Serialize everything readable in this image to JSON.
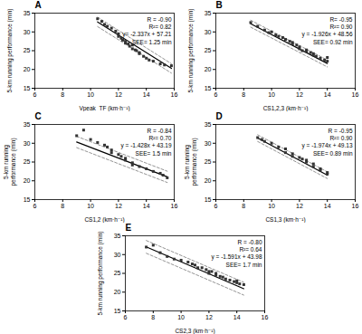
{
  "chart_data": [
    {
      "type": "scatter",
      "title": "A",
      "xlabel": "Vpeak_TF (km·h⁻¹)",
      "ylabel": "5-km running performance (min)",
      "xlim": [
        6,
        16
      ],
      "ylim": [
        15,
        35
      ],
      "xticks": [
        6,
        8,
        10,
        12,
        14,
        16
      ],
      "yticks": [
        15,
        20,
        25,
        30,
        35
      ],
      "grid": false,
      "annotations": [
        "R = -0.90",
        "R²= 0.82",
        "y= -2.337x + 57.21",
        "SEE= 1.25 min"
      ],
      "color": "#333333",
      "marker": "square",
      "x": [
        10.5,
        10.8,
        11.0,
        11.2,
        11.5,
        11.8,
        12.0,
        12.0,
        12.2,
        12.3,
        12.5,
        12.5,
        12.7,
        12.8,
        13.0,
        13.0,
        13.2,
        13.3,
        13.5,
        13.5,
        13.8,
        14.0,
        14.2,
        14.5,
        15.0,
        15.3,
        15.8
      ],
      "values": [
        33.5,
        32.8,
        32.0,
        31.5,
        31.0,
        30.2,
        29.5,
        28.8,
        28.3,
        27.8,
        27.5,
        27.0,
        26.8,
        26.2,
        26.5,
        25.5,
        25.2,
        25.0,
        24.5,
        24.2,
        23.5,
        23.0,
        22.5,
        22.2,
        21.5,
        21.2,
        21.0
      ],
      "series": [
        {
          "type": "line",
          "color": "#000000",
          "line_style": "solid",
          "x": [
            10.5,
            15.8
          ],
          "values": [
            32.6715,
            20.2854
          ]
        },
        {
          "type": "line",
          "color": "#888888",
          "line_style": "dashed",
          "x": [
            10.5,
            15.8
          ],
          "values": [
            33.9215,
            21.5354
          ]
        },
        {
          "type": "line",
          "color": "#888888",
          "line_style": "dashed",
          "x": [
            10.5,
            15.8
          ],
          "values": [
            31.4215,
            19.0354
          ]
        }
      ]
    },
    {
      "type": "scatter",
      "title": "B",
      "xlabel": "CS1,2,3 (km·h⁻¹)",
      "ylabel": "5-km running performance (min)",
      "xlim": [
        6,
        16
      ],
      "ylim": [
        15,
        35
      ],
      "xticks": [
        6,
        8,
        10,
        12,
        14,
        16
      ],
      "yticks": [
        15,
        20,
        25,
        30,
        35
      ],
      "grid": false,
      "annotations": [
        "R= -0.95",
        "R²= 0.90",
        "y = -1.926x + 48.56",
        "SEE= 0.92 min"
      ],
      "color": "#333333",
      "marker": "square",
      "x": [
        8.5,
        9.0,
        9.5,
        9.8,
        10.0,
        10.3,
        10.5,
        10.8,
        11.0,
        11.3,
        11.5,
        11.5,
        11.8,
        12.0,
        12.0,
        12.2,
        12.5,
        12.5,
        12.8,
        13.0,
        13.0,
        13.2,
        13.5,
        13.8,
        14.0,
        14.0
      ],
      "values": [
        32.5,
        31.5,
        30.5,
        29.8,
        30.0,
        29.2,
        28.8,
        28.5,
        28.0,
        27.5,
        27.2,
        26.8,
        26.5,
        26.0,
        25.5,
        25.0,
        25.2,
        24.8,
        24.5,
        24.2,
        23.8,
        23.5,
        23.0,
        22.5,
        22.2,
        23.2
      ],
      "series": [
        {
          "type": "line",
          "color": "#000000",
          "line_style": "solid",
          "x": [
            8.5,
            14.0
          ],
          "values": [
            32.189,
            21.596
          ]
        },
        {
          "type": "line",
          "color": "#888888",
          "line_style": "dashed",
          "x": [
            8.5,
            14.0
          ],
          "values": [
            33.109,
            22.516
          ]
        },
        {
          "type": "line",
          "color": "#888888",
          "line_style": "dashed",
          "x": [
            8.5,
            14.0
          ],
          "values": [
            31.269,
            20.676
          ]
        }
      ]
    },
    {
      "type": "scatter",
      "title": "C",
      "xlabel": "CS1,2 (km·h⁻¹)",
      "ylabel": "5-km running\nperformance (min)",
      "xlim": [
        6,
        16
      ],
      "ylim": [
        15,
        35
      ],
      "xticks": [
        6,
        8,
        10,
        12,
        14,
        16
      ],
      "yticks": [
        15,
        20,
        25,
        30,
        35
      ],
      "grid": false,
      "annotations": [
        "R = -0.84",
        "R²= 0.70",
        "y = -1.428x + 43.19",
        "SEE= 1.5 min"
      ],
      "color": "#333333",
      "marker": "square",
      "x": [
        9.0,
        9.5,
        10.0,
        10.5,
        11.0,
        11.2,
        11.5,
        11.5,
        12.0,
        12.2,
        12.5,
        12.5,
        13.0,
        13.0,
        13.5,
        14.0,
        14.5,
        15.0,
        15.2,
        15.5
      ],
      "values": [
        32.0,
        33.5,
        31.0,
        30.2,
        29.5,
        29.0,
        28.2,
        27.5,
        27.0,
        26.5,
        26.0,
        25.5,
        24.8,
        24.2,
        23.8,
        23.2,
        22.5,
        22.0,
        21.5,
        20.8
      ],
      "series": [
        {
          "type": "line",
          "color": "#000000",
          "line_style": "solid",
          "x": [
            9.0,
            15.5
          ],
          "values": [
            30.338,
            21.056
          ]
        },
        {
          "type": "line",
          "color": "#888888",
          "line_style": "dashed",
          "x": [
            9.0,
            15.5
          ],
          "values": [
            31.838,
            22.556
          ]
        },
        {
          "type": "line",
          "color": "#888888",
          "line_style": "dashed",
          "x": [
            9.0,
            15.5
          ],
          "values": [
            28.838,
            19.556
          ]
        }
      ]
    },
    {
      "type": "scatter",
      "title": "D",
      "xlabel": "CS1,3 (km·h⁻¹)",
      "ylabel": "5-km running\nperformance (min)",
      "xlim": [
        6,
        16
      ],
      "ylim": [
        15,
        35
      ],
      "xticks": [
        6,
        8,
        10,
        12,
        14,
        16
      ],
      "yticks": [
        15,
        20,
        25,
        30,
        35
      ],
      "grid": false,
      "annotations": [
        "R = -0.95",
        "R²= 0.90",
        "y = -1.974x + 49.13",
        "SEE= 0.89 min"
      ],
      "color": "#333333",
      "marker": "square",
      "x": [
        9.0,
        9.3,
        9.5,
        10.0,
        10.5,
        11.0,
        11.0,
        11.5,
        11.5,
        12.0,
        12.2,
        12.5,
        12.5,
        13.0,
        13.0,
        13.5,
        13.5,
        14.0,
        14.0
      ],
      "values": [
        31.5,
        31.0,
        30.5,
        30.0,
        29.0,
        28.5,
        27.5,
        27.2,
        26.5,
        26.2,
        25.8,
        25.5,
        25.0,
        24.5,
        23.8,
        23.2,
        22.8,
        22.2,
        21.8
      ],
      "series": [
        {
          "type": "line",
          "color": "#000000",
          "line_style": "solid",
          "x": [
            9.0,
            14.0
          ],
          "values": [
            31.364,
            21.494
          ]
        },
        {
          "type": "line",
          "color": "#888888",
          "line_style": "dashed",
          "x": [
            9.0,
            14.0
          ],
          "values": [
            32.254,
            22.384
          ]
        },
        {
          "type": "line",
          "color": "#888888",
          "line_style": "dashed",
          "x": [
            9.0,
            14.0
          ],
          "values": [
            30.474,
            20.604
          ]
        }
      ]
    },
    {
      "type": "scatter",
      "title": "E",
      "xlabel": "CS2,3 (km·h⁻¹)",
      "ylabel": "5-km running performance (min)",
      "xlim": [
        6,
        16
      ],
      "ylim": [
        15,
        35
      ],
      "xticks": [
        6,
        8,
        10,
        12,
        14,
        16
      ],
      "yticks": [
        15,
        20,
        25,
        30,
        35
      ],
      "grid": false,
      "annotations": [
        "R = -0.80",
        "R²= 0.64",
        "y = -1.591x + 43.98",
        "SEE= 1.7 min"
      ],
      "color": "#333333",
      "marker": "square",
      "x": [
        7.5,
        8.0,
        8.5,
        9.0,
        9.5,
        10.0,
        10.5,
        10.8,
        11.0,
        11.2,
        11.5,
        11.8,
        12.0,
        12.0,
        12.2,
        12.5,
        12.5,
        12.8,
        13.0,
        13.2,
        13.5,
        13.8,
        14.0,
        14.0,
        14.2,
        14.5
      ],
      "values": [
        32.0,
        32.5,
        30.5,
        29.5,
        28.8,
        28.5,
        28.0,
        27.5,
        27.2,
        26.5,
        26.5,
        26.0,
        25.5,
        25.0,
        25.5,
        25.0,
        24.5,
        24.2,
        24.0,
        23.5,
        23.2,
        22.8,
        23.0,
        22.5,
        22.2,
        22.0
      ],
      "series": [
        {
          "type": "line",
          "color": "#000000",
          "line_style": "solid",
          "x": [
            7.5,
            14.5
          ],
          "values": [
            32.0475,
            20.9105
          ]
        },
        {
          "type": "line",
          "color": "#888888",
          "line_style": "dashed",
          "x": [
            7.5,
            14.5
          ],
          "values": [
            33.7475,
            22.6105
          ]
        },
        {
          "type": "line",
          "color": "#888888",
          "line_style": "dashed",
          "x": [
            7.5,
            14.5
          ],
          "values": [
            30.3475,
            19.2105
          ]
        }
      ]
    }
  ]
}
